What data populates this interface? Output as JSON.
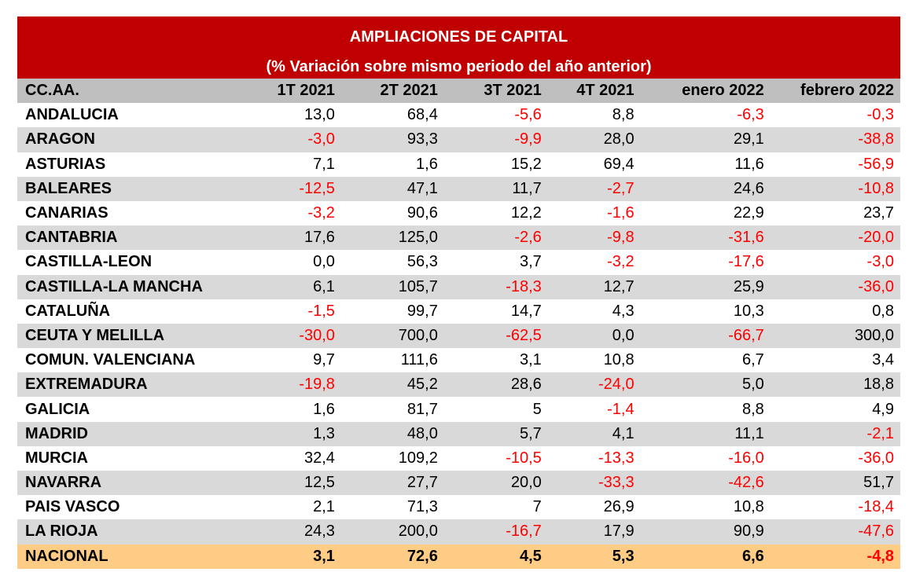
{
  "title": {
    "line1": "AMPLIACIONES DE CAPITAL",
    "line2": "(%  Variación sobre mismo periodo del año anterior)"
  },
  "colors": {
    "header_red": "#c00000",
    "column_header_gray": "#bfbfbf",
    "alt_row_gray": "#d9d9d9",
    "total_row_orange": "#ffcc85",
    "negative_red": "#ff0000"
  },
  "columns": [
    "CC.AA.",
    "1T 2021",
    "2T 2021",
    "3T 2021",
    "4T 2021",
    "enero 2022",
    "febrero 2022"
  ],
  "rows": [
    {
      "region": "ANDALUCIA",
      "values": [
        "13,0",
        "68,4",
        "-5,6",
        "8,8",
        "-6,3",
        "-0,3"
      ]
    },
    {
      "region": "ARAGON",
      "values": [
        "-3,0",
        "93,3",
        "-9,9",
        "28,0",
        "29,1",
        "-38,8"
      ]
    },
    {
      "region": "ASTURIAS",
      "values": [
        "7,1",
        "1,6",
        "15,2",
        "69,4",
        "11,6",
        "-56,9"
      ]
    },
    {
      "region": "BALEARES",
      "values": [
        "-12,5",
        "47,1",
        "11,7",
        "-2,7",
        "24,6",
        "-10,8"
      ]
    },
    {
      "region": "CANARIAS",
      "values": [
        "-3,2",
        "90,6",
        "12,2",
        "-1,6",
        "22,9",
        "23,7"
      ]
    },
    {
      "region": "CANTABRIA",
      "values": [
        "17,6",
        "125,0",
        "-2,6",
        "-9,8",
        "-31,6",
        "-20,0"
      ]
    },
    {
      "region": "CASTILLA-LEON",
      "values": [
        "0,0",
        "56,3",
        "3,7",
        "-3,2",
        "-17,6",
        "-3,0"
      ]
    },
    {
      "region": "CASTILLA-LA MANCHA",
      "values": [
        "6,1",
        "105,7",
        "-18,3",
        "12,7",
        "25,9",
        "-36,0"
      ]
    },
    {
      "region": "CATALUÑA",
      "values": [
        "-1,5",
        "99,7",
        "14,7",
        "4,3",
        "10,3",
        "0,8"
      ]
    },
    {
      "region": "CEUTA Y MELILLA",
      "values": [
        "-30,0",
        "700,0",
        "-62,5",
        "0,0",
        "-66,7",
        "300,0"
      ]
    },
    {
      "region": "COMUN. VALENCIANA",
      "values": [
        "9,7",
        "111,6",
        "3,1",
        "10,8",
        "6,7",
        "3,4"
      ]
    },
    {
      "region": "EXTREMADURA",
      "values": [
        "-19,8",
        "45,2",
        "28,6",
        "-24,0",
        "5,0",
        "18,8"
      ]
    },
    {
      "region": "GALICIA",
      "values": [
        "1,6",
        "81,7",
        "5",
        "-1,4",
        "8,8",
        "4,9"
      ]
    },
    {
      "region": "MADRID",
      "values": [
        "1,3",
        "48,0",
        "5,7",
        "4,1",
        "11,1",
        "-2,1"
      ]
    },
    {
      "region": "MURCIA",
      "values": [
        "32,4",
        "109,2",
        "-10,5",
        "-13,3",
        "-16,0",
        "-36,0"
      ]
    },
    {
      "region": "NAVARRA",
      "values": [
        "12,5",
        "27,7",
        "20,0",
        "-33,3",
        "-42,6",
        "51,7"
      ]
    },
    {
      "region": "PAIS VASCO",
      "values": [
        "2,1",
        "71,3",
        "7",
        "26,9",
        "10,8",
        "-18,4"
      ]
    },
    {
      "region": "LA RIOJA",
      "values": [
        "24,3",
        "200,0",
        "-16,7",
        "17,9",
        "90,9",
        "-47,6"
      ]
    }
  ],
  "total": {
    "region": "NACIONAL",
    "values": [
      "3,1",
      "72,6",
      "4,5",
      "5,3",
      "6,6",
      "-4,8"
    ]
  }
}
